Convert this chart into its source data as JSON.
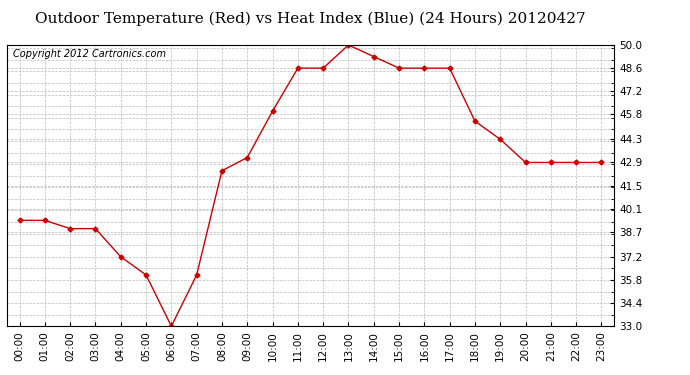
{
  "title": "Outdoor Temperature (Red) vs Heat Index (Blue) (24 Hours) 20120427",
  "copyright_text": "Copyright 2012 Cartronics.com",
  "x_labels": [
    "00:00",
    "01:00",
    "02:00",
    "03:00",
    "04:00",
    "05:00",
    "06:00",
    "07:00",
    "08:00",
    "09:00",
    "10:00",
    "11:00",
    "12:00",
    "13:00",
    "14:00",
    "15:00",
    "16:00",
    "17:00",
    "18:00",
    "19:00",
    "20:00",
    "21:00",
    "22:00",
    "23:00"
  ],
  "temp_values": [
    39.4,
    39.4,
    38.9,
    38.9,
    37.2,
    36.1,
    33.0,
    36.1,
    42.4,
    43.2,
    46.0,
    48.6,
    48.6,
    50.0,
    49.3,
    48.6,
    48.6,
    48.6,
    45.4,
    44.3,
    42.9,
    42.9,
    42.9,
    42.9
  ],
  "line_color_temp": "#cc0000",
  "marker": "D",
  "marker_size": 2.5,
  "background_color": "#ffffff",
  "grid_color": "#bbbbbb",
  "ylim": [
    33.0,
    50.0
  ],
  "yticks": [
    33.0,
    34.4,
    35.8,
    37.2,
    38.7,
    40.1,
    41.5,
    42.9,
    44.3,
    45.8,
    47.2,
    48.6,
    50.0
  ],
  "title_fontsize": 11,
  "tick_fontsize": 7.5,
  "copyright_fontsize": 7
}
